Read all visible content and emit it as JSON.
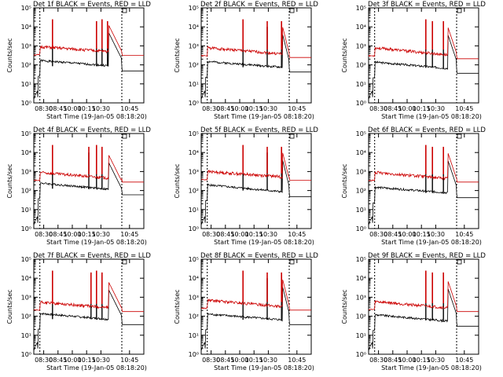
{
  "figure": {
    "xlabel": "Start Time (19-Jan-05 08:18:20)",
    "ylabel": "Counts/sec",
    "x_tick_labels": [
      "08:30",
      "08:45",
      "10:00",
      "10:15",
      "10:30",
      "10:45"
    ],
    "y_tick_labels": [
      "10⁰",
      "10¹",
      "10²",
      "10³",
      "10⁴",
      "10⁵"
    ],
    "black_color": "#000000",
    "red_color": "#cc0000"
  },
  "chart_data": [
    {
      "title": "Det 1f BLACK = Events, RED = LLD",
      "type": "line",
      "yscale": "log",
      "ylim": [
        1,
        100000
      ],
      "black": {
        "base": 170,
        "end": 80,
        "spikes": [
          {
            "x": 0.17,
            "v": 12000
          },
          {
            "x": 0.57,
            "v": 10000
          },
          {
            "x": 0.62,
            "v": 12000
          },
          {
            "x": 0.67,
            "v": 10000
          }
        ]
      },
      "red": {
        "base": 900,
        "end": 450,
        "spikes": [
          {
            "x": 0.17,
            "v": 25000
          },
          {
            "x": 0.57,
            "v": 20000
          },
          {
            "x": 0.62,
            "v": 25000
          },
          {
            "x": 0.67,
            "v": 20000
          }
        ]
      },
      "shoulder": {
        "x": 0.7,
        "v": 5000
      }
    },
    {
      "title": "Det 2f BLACK = Events, RED = LLD",
      "type": "line",
      "yscale": "log",
      "ylim": [
        1,
        100000
      ],
      "black": {
        "base": 150,
        "end": 70,
        "spikes": [
          {
            "x": 0.38,
            "v": 12000
          },
          {
            "x": 0.6,
            "v": 10000
          },
          {
            "x": 0.73,
            "v": 10000
          }
        ]
      },
      "red": {
        "base": 800,
        "end": 350,
        "spikes": [
          {
            "x": 0.38,
            "v": 25000
          },
          {
            "x": 0.6,
            "v": 20000
          },
          {
            "x": 0.73,
            "v": 20000
          }
        ]
      },
      "shoulder": {
        "x": 0.76,
        "v": 4000
      }
    },
    {
      "title": "Det 3f BLACK = Events, RED = LLD",
      "type": "line",
      "yscale": "log",
      "ylim": [
        1,
        100000
      ],
      "black": {
        "base": 140,
        "end": 60,
        "spikes": [
          {
            "x": 0.52,
            "v": 12000
          },
          {
            "x": 0.58,
            "v": 10000
          },
          {
            "x": 0.68,
            "v": 10000
          }
        ]
      },
      "red": {
        "base": 800,
        "end": 300,
        "spikes": [
          {
            "x": 0.52,
            "v": 25000
          },
          {
            "x": 0.58,
            "v": 20000
          },
          {
            "x": 0.68,
            "v": 20000
          }
        ]
      },
      "shoulder": {
        "x": 0.74,
        "v": 4000
      }
    },
    {
      "title": "Det 4f BLACK = Events, RED = LLD",
      "type": "line",
      "yscale": "log",
      "ylim": [
        1,
        100000
      ],
      "black": {
        "base": 250,
        "end": 100,
        "spikes": [
          {
            "x": 0.17,
            "v": 10000
          },
          {
            "x": 0.5,
            "v": 10000
          },
          {
            "x": 0.57,
            "v": 15000
          },
          {
            "x": 0.62,
            "v": 12000
          }
        ]
      },
      "red": {
        "base": 900,
        "end": 400,
        "spikes": [
          {
            "x": 0.17,
            "v": 25000
          },
          {
            "x": 0.5,
            "v": 20000
          },
          {
            "x": 0.57,
            "v": 25000
          },
          {
            "x": 0.62,
            "v": 20000
          }
        ]
      },
      "shoulder": {
        "x": 0.7,
        "v": 3000
      }
    },
    {
      "title": "Det 5f BLACK = Events, RED = LLD",
      "type": "line",
      "yscale": "log",
      "ylim": [
        1,
        100000
      ],
      "black": {
        "base": 200,
        "end": 80,
        "spikes": [
          {
            "x": 0.38,
            "v": 12000
          },
          {
            "x": 0.6,
            "v": 10000
          },
          {
            "x": 0.73,
            "v": 10000
          }
        ]
      },
      "red": {
        "base": 1000,
        "end": 500,
        "spikes": [
          {
            "x": 0.38,
            "v": 25000
          },
          {
            "x": 0.6,
            "v": 20000
          },
          {
            "x": 0.73,
            "v": 20000
          }
        ]
      },
      "shoulder": {
        "x": 0.76,
        "v": 4000
      }
    },
    {
      "title": "Det 6f BLACK = Events, RED = LLD",
      "type": "line",
      "yscale": "log",
      "ylim": [
        1,
        100000
      ],
      "black": {
        "base": 150,
        "end": 70,
        "spikes": [
          {
            "x": 0.52,
            "v": 12000
          },
          {
            "x": 0.58,
            "v": 10000
          },
          {
            "x": 0.68,
            "v": 10000
          }
        ]
      },
      "red": {
        "base": 900,
        "end": 400,
        "spikes": [
          {
            "x": 0.52,
            "v": 25000
          },
          {
            "x": 0.58,
            "v": 20000
          },
          {
            "x": 0.68,
            "v": 20000
          }
        ]
      },
      "shoulder": {
        "x": 0.74,
        "v": 4000
      }
    },
    {
      "title": "Det 7f BLACK = Events, RED = LLD",
      "type": "line",
      "yscale": "log",
      "ylim": [
        1,
        100000
      ],
      "black": {
        "base": 140,
        "end": 60,
        "spikes": [
          {
            "x": 0.17,
            "v": 10000
          },
          {
            "x": 0.52,
            "v": 10000
          },
          {
            "x": 0.57,
            "v": 12000
          },
          {
            "x": 0.62,
            "v": 10000
          }
        ]
      },
      "red": {
        "base": 550,
        "end": 250,
        "spikes": [
          {
            "x": 0.17,
            "v": 25000
          },
          {
            "x": 0.52,
            "v": 20000
          },
          {
            "x": 0.57,
            "v": 25000
          },
          {
            "x": 0.62,
            "v": 20000
          }
        ]
      },
      "shoulder": {
        "x": 0.7,
        "v": 2500
      }
    },
    {
      "title": "Det 8f BLACK = Events, RED = LLD",
      "type": "line",
      "yscale": "log",
      "ylim": [
        1,
        100000
      ],
      "black": {
        "base": 130,
        "end": 60,
        "spikes": [
          {
            "x": 0.38,
            "v": 12000
          },
          {
            "x": 0.6,
            "v": 10000
          },
          {
            "x": 0.73,
            "v": 10000
          }
        ]
      },
      "red": {
        "base": 700,
        "end": 300,
        "spikes": [
          {
            "x": 0.38,
            "v": 25000
          },
          {
            "x": 0.6,
            "v": 20000
          },
          {
            "x": 0.73,
            "v": 20000
          }
        ]
      },
      "shoulder": {
        "x": 0.76,
        "v": 3500
      }
    },
    {
      "title": "Det 9f BLACK = Events, RED = LLD",
      "type": "line",
      "yscale": "log",
      "ylim": [
        1,
        100000
      ],
      "black": {
        "base": 120,
        "end": 50,
        "spikes": [
          {
            "x": 0.52,
            "v": 12000
          },
          {
            "x": 0.58,
            "v": 10000
          },
          {
            "x": 0.68,
            "v": 10000
          }
        ]
      },
      "red": {
        "base": 600,
        "end": 250,
        "spikes": [
          {
            "x": 0.52,
            "v": 25000
          },
          {
            "x": 0.58,
            "v": 20000
          },
          {
            "x": 0.68,
            "v": 20000
          }
        ]
      },
      "shoulder": {
        "x": 0.74,
        "v": 3000
      }
    }
  ]
}
